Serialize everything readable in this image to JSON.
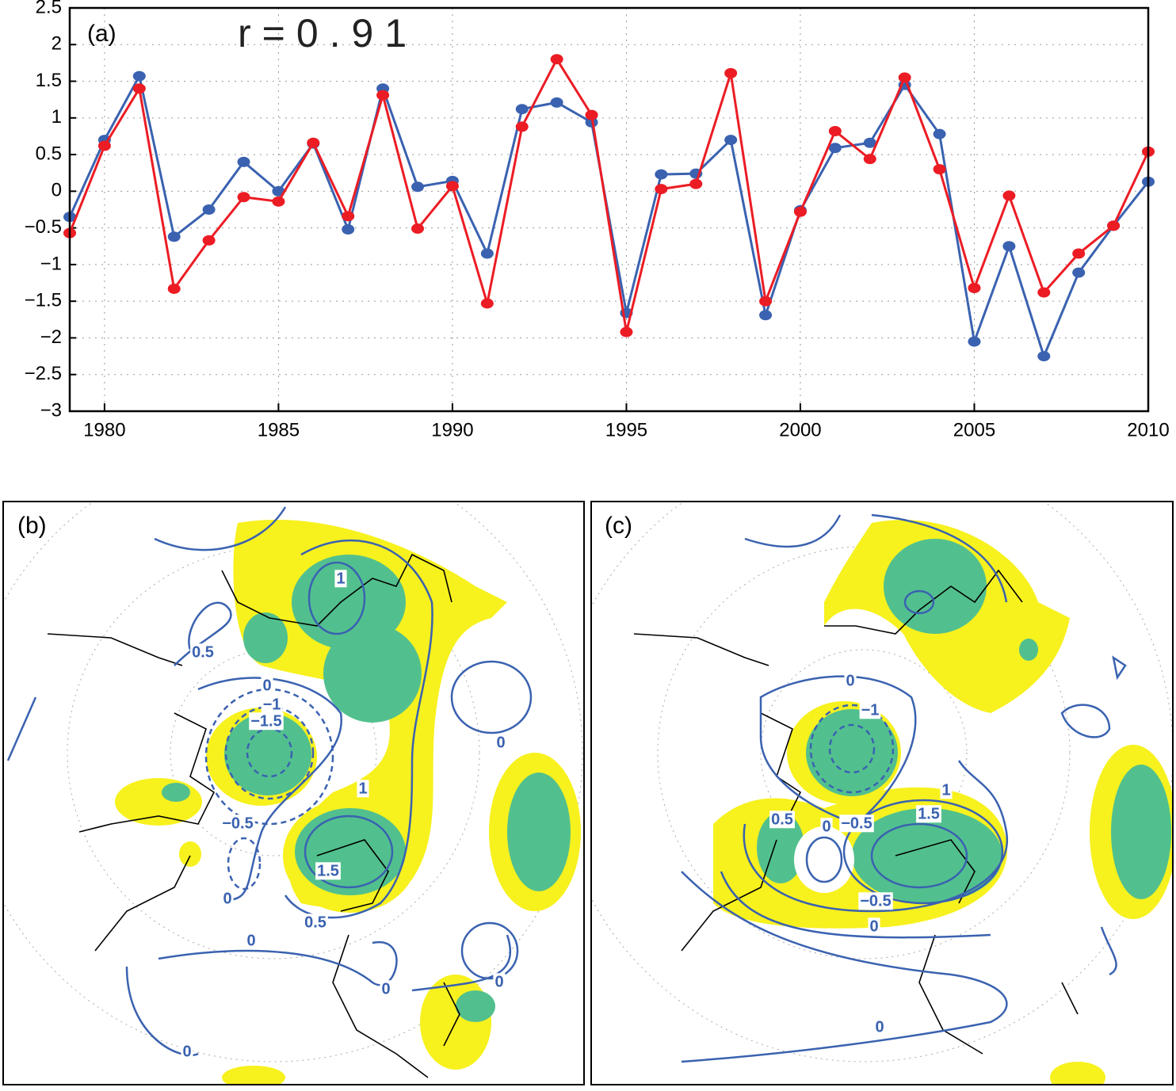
{
  "chart_data": {
    "type": "line",
    "panel_label": "(a)",
    "annotation": "r=0.91",
    "x": [
      1979,
      1980,
      1981,
      1982,
      1983,
      1984,
      1985,
      1986,
      1987,
      1988,
      1989,
      1990,
      1991,
      1992,
      1993,
      1994,
      1995,
      1996,
      1997,
      1998,
      1999,
      2000,
      2001,
      2002,
      2003,
      2004,
      2005,
      2006,
      2007,
      2008,
      2009,
      2010
    ],
    "series": [
      {
        "color": "#3a62b0",
        "values": [
          -0.35,
          0.7,
          1.57,
          -0.62,
          -0.25,
          0.4,
          0,
          0.65,
          -0.52,
          1.4,
          0.06,
          0.14,
          -0.85,
          1.12,
          1.21,
          0.94,
          -1.66,
          0.23,
          0.24,
          0.7,
          -1.69,
          -0.26,
          0.59,
          0.66,
          1.45,
          0.78,
          -2.05,
          -0.75,
          -2.25,
          -1.11,
          -0.47,
          0.13
        ]
      },
      {
        "color": "#ec1c24",
        "values": [
          -0.57,
          0.62,
          1.4,
          -1.33,
          -0.67,
          -0.08,
          -0.14,
          0.66,
          -0.34,
          1.31,
          -0.51,
          0.07,
          -1.53,
          0.88,
          1.8,
          1.04,
          -1.92,
          0.03,
          0.1,
          1.61,
          -1.5,
          -0.28,
          0.82,
          0.44,
          1.55,
          0.3,
          -1.32,
          -0.06,
          -1.38,
          -0.85,
          -0.47,
          0.54
        ]
      }
    ],
    "xlim": [
      1979,
      2010
    ],
    "xticks": [
      1980,
      1985,
      1990,
      1995,
      2000,
      2005,
      2010
    ],
    "ylim": [
      -3,
      2.5
    ],
    "yticks": [
      {
        "value": -3,
        "label": "−3"
      },
      {
        "value": -2.5,
        "label": "−2.5"
      },
      {
        "value": -2,
        "label": "−2"
      },
      {
        "value": -1.5,
        "label": "−1.5"
      },
      {
        "value": -1,
        "label": "−1"
      },
      {
        "value": -0.5,
        "label": "−0.5"
      },
      0,
      0.5,
      1,
      1.5,
      2,
      2.5
    ],
    "grid": true
  },
  "maps": [
    {
      "panel_label": "(b)",
      "contour_labels": [
        "1",
        "0.5",
        "0",
        "−1",
        "−1.5",
        "1",
        "−0.5",
        "1.5",
        "0",
        "0.5",
        "0",
        "0",
        "0",
        "0",
        "0"
      ]
    },
    {
      "panel_label": "(c)",
      "contour_labels": [
        "0",
        "−1",
        "0.5",
        "−0.5",
        "0",
        "1",
        "1.5",
        "−0.5",
        "0",
        "0"
      ]
    }
  ]
}
